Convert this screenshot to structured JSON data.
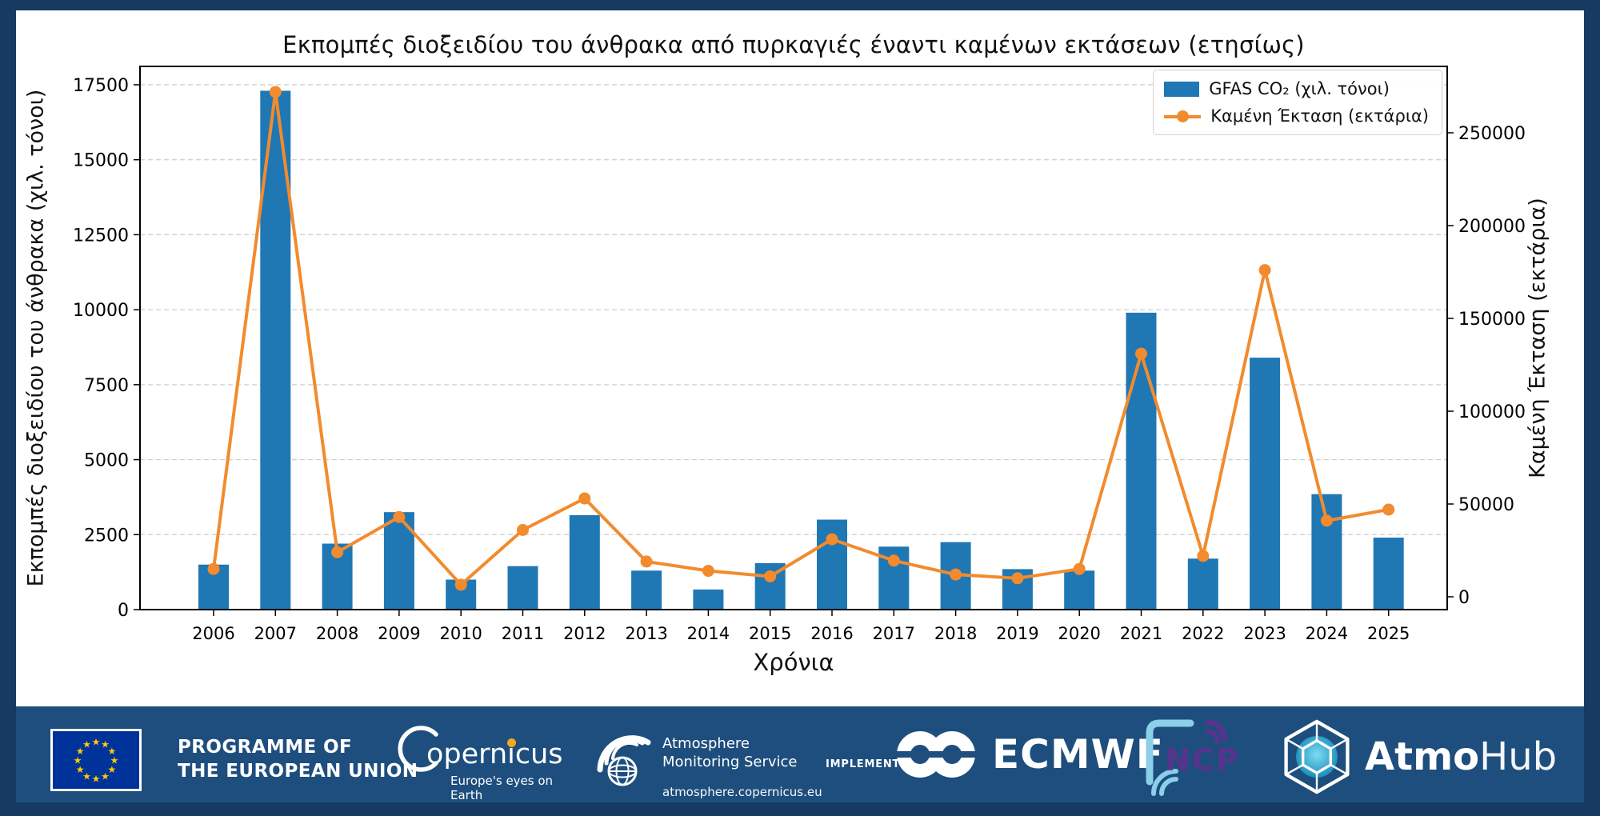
{
  "title": "Εκπομπές διοξειδίου του άνθρακα από πυρκαγιές έναντι καμένων εκτάσεων (ετησίως)",
  "chart_data": {
    "type": "bar+line dual-axis",
    "title": "Εκπομπές διοξειδίου του άνθρακα από πυρκαγιές έναντι καμένων εκτάσεων (ετησίως)",
    "categories": [
      "2006",
      "2007",
      "2008",
      "2009",
      "2010",
      "2011",
      "2012",
      "2013",
      "2014",
      "2015",
      "2016",
      "2017",
      "2018",
      "2019",
      "2020",
      "2021",
      "2022",
      "2023",
      "2024",
      "2025"
    ],
    "series": [
      {
        "name": "GFAS CO₂ (χιλ. τόνοι)",
        "type": "bar",
        "axis": "left",
        "color": "#1f77b4",
        "values": [
          1500,
          17300,
          2200,
          3250,
          1000,
          1450,
          3150,
          1300,
          670,
          1550,
          3000,
          2100,
          2250,
          1350,
          1300,
          9900,
          1700,
          8400,
          3850,
          2400
        ]
      },
      {
        "name": "Καμένη Έκταση (εκτάρια)",
        "type": "line",
        "axis": "right",
        "color": "#f28b2e",
        "marker": "circle",
        "values": [
          15000,
          272000,
          24000,
          43000,
          6500,
          36000,
          53000,
          19000,
          14000,
          11000,
          31000,
          19500,
          12000,
          10000,
          15000,
          131000,
          22000,
          176000,
          41000,
          47000
        ]
      }
    ],
    "xlabel": "Χρόνια",
    "ylabel_left": "Εκπομπές διοξειδίου του άνθρακα (χιλ. τόνοι)",
    "ylabel_right": "Καμένη Έκταση (εκτάρια)",
    "yticks_left": [
      0,
      2500,
      5000,
      7500,
      10000,
      12500,
      15000,
      17500
    ],
    "yticks_right": [
      0,
      50000,
      100000,
      150000,
      200000,
      250000
    ],
    "ylim_left": [
      0,
      18100
    ],
    "ylim_right": [
      -6900,
      285800
    ],
    "grid": "horizontal dashed",
    "legend_position": "upper right"
  },
  "footer": {
    "eu_programme": {
      "line1": "PROGRAMME OF",
      "line2": "THE EUROPEAN UNION"
    },
    "copernicus": {
      "wordmark": "opernicus",
      "tagline": "Europe's eyes on Earth"
    },
    "ams": {
      "line1": "Atmosphere",
      "line2": "Monitoring Service",
      "url": "atmosphere.copernicus.eu"
    },
    "implemented_by": "IMPLEMENTED BY",
    "ecmwf": "ECMWF",
    "ncp": "NCP",
    "atmohub": {
      "bold": "Atmo",
      "light": "Hub"
    }
  },
  "colors": {
    "background": "#163a61",
    "footer_band": "#1e4e7d",
    "panel": "#ffffff",
    "bar": "#1f77b4",
    "line": "#f28b2e",
    "grid": "#cfcfcf",
    "eu_flag_blue": "#003399",
    "eu_star_yellow": "#ffcc00",
    "ncp_light_blue": "#8bcfe8",
    "ncp_purple": "#5e3190",
    "atmohub_cyan_light": "#7fdcf2",
    "atmohub_cyan_dark": "#1286b8"
  }
}
